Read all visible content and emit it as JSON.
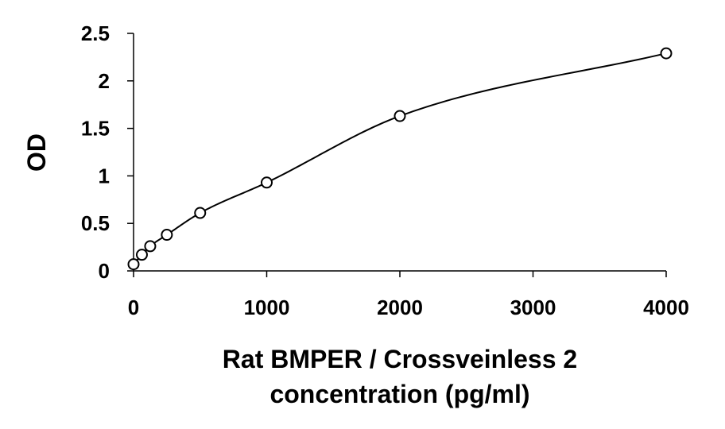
{
  "chart_data": {
    "type": "scatter",
    "title": "",
    "ylabel": "OD",
    "xlabel_lines": [
      "Rat BMPER / Crossveinless 2",
      "concentration (pg/ml)"
    ],
    "xlim": [
      0,
      4000
    ],
    "ylim": [
      0,
      2.5
    ],
    "x_ticks": [
      0,
      1000,
      2000,
      3000,
      4000
    ],
    "x_tick_labels": [
      "0",
      "1000",
      "2000",
      "3000",
      "4000"
    ],
    "y_ticks": [
      0,
      0.5,
      1,
      1.5,
      2,
      2.5
    ],
    "y_tick_labels": [
      "0",
      "0.5",
      "1",
      "1.5",
      "2",
      "2.5"
    ],
    "grid": false,
    "series": [
      {
        "x": [
          0,
          62.5,
          125,
          250,
          500,
          1000,
          2000,
          4000
        ],
        "y": [
          0.07,
          0.17,
          0.26,
          0.38,
          0.61,
          0.93,
          1.63,
          2.29
        ],
        "marker": "open-circle",
        "fit": "smooth-curve"
      }
    ],
    "colors": {
      "marker": "#000000",
      "curve": "#000000",
      "background": "#ffffff"
    }
  }
}
